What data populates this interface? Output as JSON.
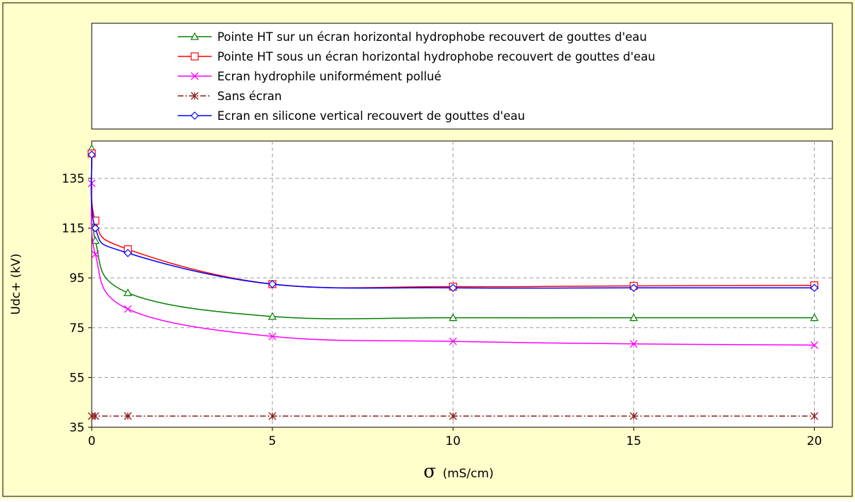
{
  "chart_data": {
    "type": "line",
    "background_color": "#FFFFCC",
    "plot_background_color": "#FFFFFF",
    "xlabel": "(mS/cm)",
    "xlabel_symbol": "σ",
    "ylabel": "Udc+ (kV)",
    "xlim": [
      0,
      20.5
    ],
    "ylim": [
      35,
      150
    ],
    "x_ticks": [
      0,
      5,
      10,
      15,
      20
    ],
    "y_ticks": [
      35,
      55,
      75,
      95,
      115,
      135
    ],
    "grid": true,
    "legend_position": "top",
    "series": [
      {
        "name": "Pointe HT sur un écran horizontal hydrophobe recouvert de gouttes d'eau",
        "color": "#008000",
        "marker": "triangle",
        "line_style": "solid",
        "x": [
          0,
          0.1,
          1,
          5,
          10,
          15,
          20
        ],
        "y": [
          147,
          110,
          89,
          79.5,
          79,
          79,
          79
        ]
      },
      {
        "name": "Pointe HT sous un écran horizontal hydrophobe recouvert de gouttes d'eau",
        "color": "#FF0000",
        "marker": "square",
        "line_style": "solid",
        "x": [
          0,
          0.1,
          1,
          5,
          10,
          15,
          20
        ],
        "y": [
          145,
          118,
          106.5,
          92.5,
          91.5,
          91.8,
          92
        ]
      },
      {
        "name": "Ecran hydrophile uniformément pollué",
        "color": "#FF00FF",
        "marker": "x",
        "line_style": "solid",
        "x": [
          0,
          0.1,
          1,
          5,
          10,
          15,
          20
        ],
        "y": [
          133,
          104.5,
          82.5,
          71.5,
          69.5,
          68.5,
          68
        ]
      },
      {
        "name": "Sans écran",
        "color": "#8B1A1A",
        "marker": "star",
        "line_style": "dashdot",
        "x": [
          0,
          0.1,
          1,
          5,
          10,
          15,
          20
        ],
        "y": [
          39.5,
          39.5,
          39.5,
          39.5,
          39.5,
          39.5,
          39.5
        ]
      },
      {
        "name": "Ecran en silicone vertical recouvert de gouttes d'eau",
        "color": "#0000FF",
        "marker": "diamond",
        "line_style": "solid",
        "x": [
          0,
          0.1,
          1,
          5,
          10,
          15,
          20
        ],
        "y": [
          144.5,
          115,
          105,
          92.5,
          91,
          91,
          91
        ]
      }
    ]
  }
}
